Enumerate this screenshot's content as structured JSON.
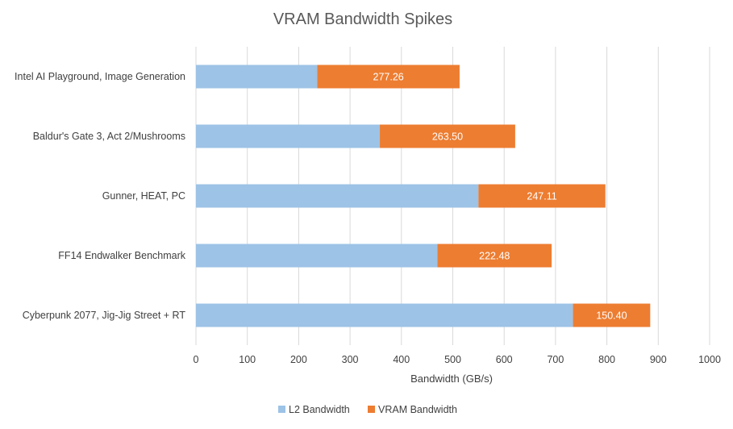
{
  "chart_data": {
    "type": "bar",
    "orientation": "horizontal",
    "stacked": true,
    "title": "VRAM Bandwidth Spikes",
    "xlabel": "Bandwidth (GB/s)",
    "ylabel": "",
    "xlim": [
      0,
      1000
    ],
    "x_ticks": [
      "0",
      "100",
      "200",
      "300",
      "400",
      "500",
      "600",
      "700",
      "800",
      "900",
      "1000"
    ],
    "grid": true,
    "legend_position": "bottom",
    "categories": [
      "Intel AI Playground, Image Generation",
      "Baldur's Gate 3, Act 2/Mushrooms",
      "Gunner, HEAT, PC",
      "FF14 Endwalker Benchmark",
      "Cyberpunk 2077, Jig-Jig Street + RT"
    ],
    "series": [
      {
        "name": "L2 Bandwidth",
        "color": "#9dc3e6",
        "values": [
          236,
          358,
          550,
          470,
          734
        ],
        "labels": [
          "",
          "",
          "",
          "",
          ""
        ]
      },
      {
        "name": "VRAM Bandwidth",
        "color": "#ed7d31",
        "values": [
          277.26,
          263.5,
          247.11,
          222.48,
          150.4
        ],
        "labels": [
          "277.26",
          "263.50",
          "247.11",
          "222.48",
          "150.40"
        ]
      }
    ]
  }
}
